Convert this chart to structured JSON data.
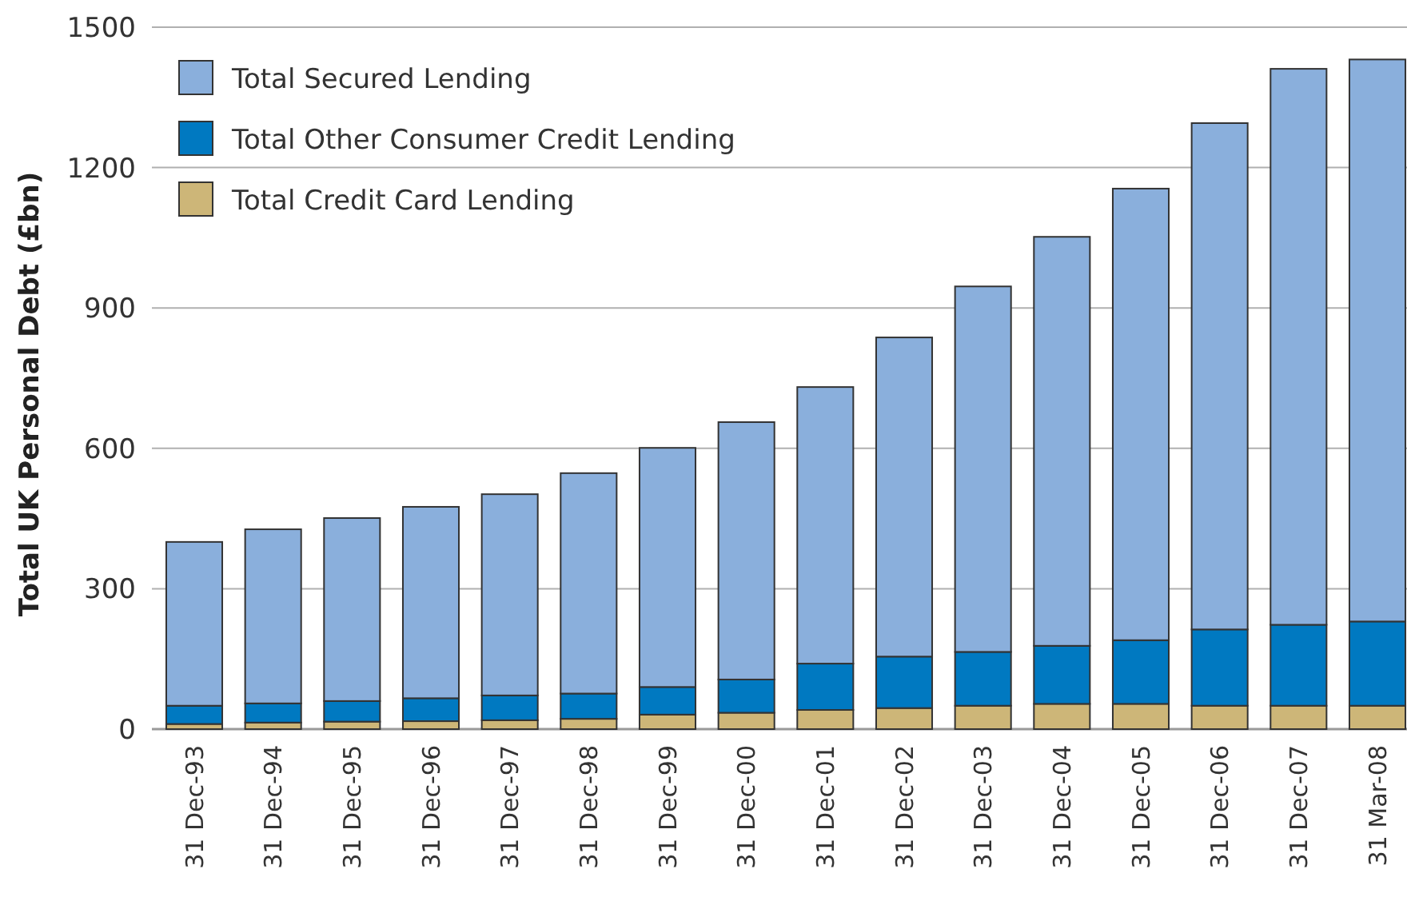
{
  "chart_data": {
    "type": "bar",
    "stacked": true,
    "ylabel": "Total UK Personal Debt (£bn)",
    "categories": [
      "31 Dec-93",
      "31 Dec-94",
      "31 Dec-95",
      "31 Dec-96",
      "31 Dec-97",
      "31 Dec-98",
      "31 Dec-99",
      "31 Dec-00",
      "31 Dec-01",
      "31 Dec-02",
      "31 Dec-03",
      "31 Dec-04",
      "31 Dec-05",
      "31 Dec-06",
      "31 Dec-07",
      "31 Mar-08"
    ],
    "series": [
      {
        "name": "Total Credit Card Lending",
        "color": "#cdb678",
        "values": [
          11,
          14,
          16,
          17,
          19,
          22,
          31,
          35,
          41,
          45,
          50,
          54,
          54,
          50,
          50,
          50
        ]
      },
      {
        "name": "Total Other Consumer Credit Lending",
        "color": "#0079c1",
        "values": [
          39,
          41,
          44,
          49,
          53,
          54,
          59,
          71,
          99,
          110,
          115,
          124,
          136,
          163,
          173,
          180
        ]
      },
      {
        "name": "Total Secured Lending",
        "color": "#8aafdc",
        "values": [
          350,
          372,
          391,
          409,
          430,
          471,
          511,
          550,
          591,
          682,
          781,
          874,
          965,
          1082,
          1188,
          1201
        ]
      }
    ],
    "ylim": [
      0,
      1500
    ],
    "yticks": [
      0,
      300,
      600,
      900,
      1200,
      1500
    ],
    "grid": "y",
    "legend": "top left"
  }
}
